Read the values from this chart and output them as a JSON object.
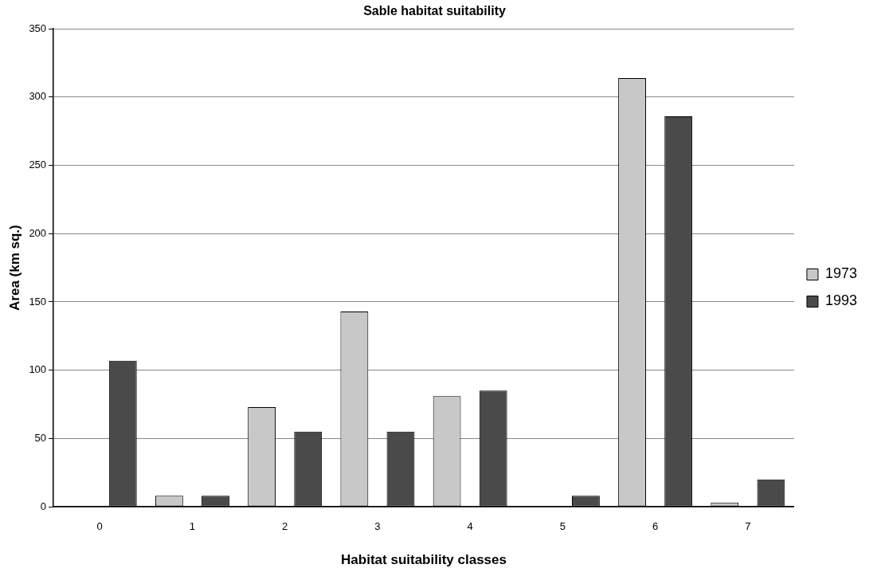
{
  "chart_data": {
    "type": "bar",
    "title": "Sable habitat suitability",
    "xlabel": "Habitat suitability classes",
    "ylabel": "Area (km sq.)",
    "categories": [
      "0",
      "1",
      "2",
      "3",
      "4",
      "5",
      "6",
      "7"
    ],
    "series": [
      {
        "name": "1973",
        "color": "#c8c8c8",
        "values": [
          0,
          8,
          73,
          143,
          81,
          0,
          314,
          3
        ]
      },
      {
        "name": "1993",
        "color": "#4a4a4a",
        "values": [
          107,
          8,
          55,
          55,
          85,
          8,
          286,
          20
        ]
      }
    ],
    "ylim": [
      0,
      350
    ],
    "yticks": [
      0,
      50,
      100,
      150,
      200,
      250,
      300,
      350
    ],
    "grid": "y",
    "legend": "right"
  }
}
